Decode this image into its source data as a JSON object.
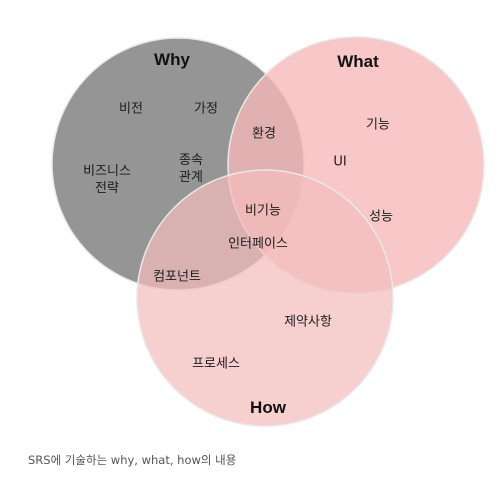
{
  "colors": {
    "why_fill": "#8c8c8c",
    "what_fill": "#f6b8b8",
    "how_fill": "#f4bcbc",
    "circle_stroke": "#e8e8e8"
  },
  "diagram": {
    "why": {
      "title": "Why",
      "items": [
        "비전",
        "가정",
        "비즈니스\n전략",
        "종속\n관계"
      ]
    },
    "what": {
      "title": "What",
      "items": [
        "기능",
        "UI",
        "성능"
      ]
    },
    "how": {
      "title": "How",
      "items": [
        "제약사항",
        "프로세스"
      ]
    },
    "why_what": [
      "환경"
    ],
    "why_how": [
      "컴포넌트"
    ],
    "center": [
      "비기능",
      "인터페이스"
    ]
  },
  "caption": "SRS에 기술하는 why, what, how의 내용"
}
